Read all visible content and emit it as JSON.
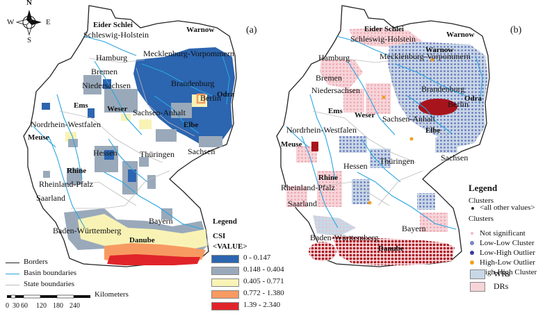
{
  "compass": {
    "n": "N",
    "s": "S",
    "e": "E",
    "w": "W"
  },
  "panel_a": {
    "letter": "(a)",
    "states": {
      "sh": "Schleswig-Holstein",
      "hh": "Hamburg",
      "hb": "Bremen",
      "ni": "Niedersachsen",
      "mv": "Mecklenburg-Vorpommern",
      "bb": "Brandenburg",
      "be": "Berlin",
      "st": "Sachsen-Anhalt",
      "nw": "Nordrhein-Westfalen",
      "he": "Hessen",
      "th": "Thüringen",
      "sn": "Sachsen",
      "rp": "Rheinland-Pfalz",
      "sl": "Saarland",
      "bw": "Baden-Württemberg",
      "by": "Bayern"
    },
    "rivers": {
      "eider": "Eider Schlei",
      "warnow": "Warnow",
      "ems": "Ems",
      "weser": "Weser",
      "odra": "Odra",
      "elbe": "Elbe",
      "meuse": "Meuse",
      "rhine": "Rhine",
      "danube": "Danube"
    },
    "legend": {
      "title": "Legend",
      "field": "CSI",
      "value": "<VALUE>",
      "classes": [
        {
          "label": "0 - 0.147",
          "color": "#2c65b0"
        },
        {
          "label": "0.148 - 0.404",
          "color": "#9aa9ba"
        },
        {
          "label": "0.405 - 0.771",
          "color": "#f8f3b5"
        },
        {
          "label": "0.772 - 1.380",
          "color": "#f79a62"
        },
        {
          "label": "1.39 - 2.340",
          "color": "#e0242a"
        }
      ]
    },
    "line_legend": {
      "borders": "Borders",
      "basin": "Basin boundaries",
      "state": "State boundaries"
    },
    "scale": {
      "unit": "Kilometers",
      "ticks": [
        "0",
        "30",
        "60",
        "120",
        "180",
        "240"
      ]
    }
  },
  "panel_b": {
    "letter": "(b)",
    "legend": {
      "title": "Legend",
      "clusters_header1": "Clusters",
      "all_other": "<all other values>",
      "clusters_header2": "Clusters",
      "items": [
        {
          "label": "Not significant",
          "color": "#f2b7c2"
        },
        {
          "label": "Low-Low Cluster",
          "color": "#7a84c8"
        },
        {
          "label": "Low-High Outlier",
          "color": "#3a3aa0"
        },
        {
          "label": "High-Low Outlier",
          "color": "#f0a020"
        },
        {
          "label": "High-High Cluster",
          "color": "#a8141c"
        }
      ],
      "wrs": "WRs",
      "drs": "DRs",
      "wrs_color": "#c8d8e6",
      "drs_color": "#f7d4d8"
    }
  },
  "colors": {
    "river": "#2aa4e0",
    "border": "#222222",
    "state": "#bbbbbb"
  }
}
